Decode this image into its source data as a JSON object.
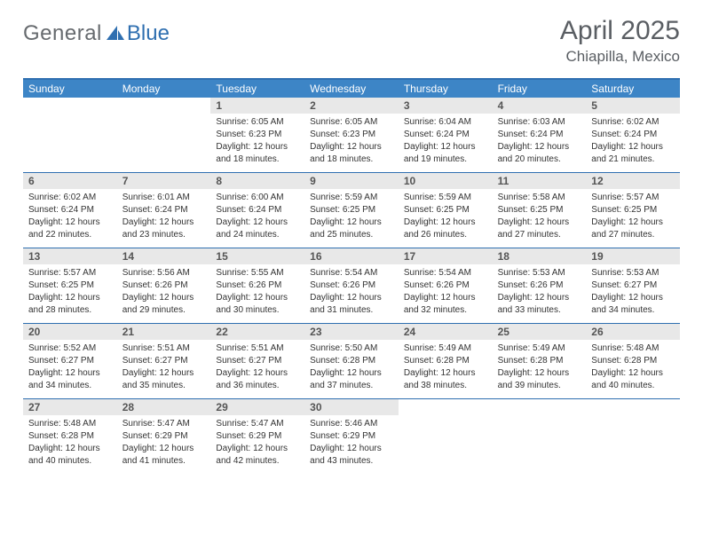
{
  "logo": {
    "word1": "General",
    "word2": "Blue"
  },
  "header": {
    "month_year": "April 2025",
    "location": "Chiapilla, Mexico"
  },
  "colors": {
    "header_bar": "#3d85c6",
    "rule": "#2f6fb0",
    "daynum_bg": "#e8e8e8",
    "logo_gray": "#666a6e",
    "logo_blue": "#2f6fb0",
    "title_gray": "#5a5e63"
  },
  "weekdays": [
    "Sunday",
    "Monday",
    "Tuesday",
    "Wednesday",
    "Thursday",
    "Friday",
    "Saturday"
  ],
  "weeks": [
    [
      {
        "empty": true
      },
      {
        "empty": true
      },
      {
        "num": "1",
        "sunrise": "Sunrise: 6:05 AM",
        "sunset": "Sunset: 6:23 PM",
        "day1": "Daylight: 12 hours",
        "day2": "and 18 minutes."
      },
      {
        "num": "2",
        "sunrise": "Sunrise: 6:05 AM",
        "sunset": "Sunset: 6:23 PM",
        "day1": "Daylight: 12 hours",
        "day2": "and 18 minutes."
      },
      {
        "num": "3",
        "sunrise": "Sunrise: 6:04 AM",
        "sunset": "Sunset: 6:24 PM",
        "day1": "Daylight: 12 hours",
        "day2": "and 19 minutes."
      },
      {
        "num": "4",
        "sunrise": "Sunrise: 6:03 AM",
        "sunset": "Sunset: 6:24 PM",
        "day1": "Daylight: 12 hours",
        "day2": "and 20 minutes."
      },
      {
        "num": "5",
        "sunrise": "Sunrise: 6:02 AM",
        "sunset": "Sunset: 6:24 PM",
        "day1": "Daylight: 12 hours",
        "day2": "and 21 minutes."
      }
    ],
    [
      {
        "num": "6",
        "sunrise": "Sunrise: 6:02 AM",
        "sunset": "Sunset: 6:24 PM",
        "day1": "Daylight: 12 hours",
        "day2": "and 22 minutes."
      },
      {
        "num": "7",
        "sunrise": "Sunrise: 6:01 AM",
        "sunset": "Sunset: 6:24 PM",
        "day1": "Daylight: 12 hours",
        "day2": "and 23 minutes."
      },
      {
        "num": "8",
        "sunrise": "Sunrise: 6:00 AM",
        "sunset": "Sunset: 6:24 PM",
        "day1": "Daylight: 12 hours",
        "day2": "and 24 minutes."
      },
      {
        "num": "9",
        "sunrise": "Sunrise: 5:59 AM",
        "sunset": "Sunset: 6:25 PM",
        "day1": "Daylight: 12 hours",
        "day2": "and 25 minutes."
      },
      {
        "num": "10",
        "sunrise": "Sunrise: 5:59 AM",
        "sunset": "Sunset: 6:25 PM",
        "day1": "Daylight: 12 hours",
        "day2": "and 26 minutes."
      },
      {
        "num": "11",
        "sunrise": "Sunrise: 5:58 AM",
        "sunset": "Sunset: 6:25 PM",
        "day1": "Daylight: 12 hours",
        "day2": "and 27 minutes."
      },
      {
        "num": "12",
        "sunrise": "Sunrise: 5:57 AM",
        "sunset": "Sunset: 6:25 PM",
        "day1": "Daylight: 12 hours",
        "day2": "and 27 minutes."
      }
    ],
    [
      {
        "num": "13",
        "sunrise": "Sunrise: 5:57 AM",
        "sunset": "Sunset: 6:25 PM",
        "day1": "Daylight: 12 hours",
        "day2": "and 28 minutes."
      },
      {
        "num": "14",
        "sunrise": "Sunrise: 5:56 AM",
        "sunset": "Sunset: 6:26 PM",
        "day1": "Daylight: 12 hours",
        "day2": "and 29 minutes."
      },
      {
        "num": "15",
        "sunrise": "Sunrise: 5:55 AM",
        "sunset": "Sunset: 6:26 PM",
        "day1": "Daylight: 12 hours",
        "day2": "and 30 minutes."
      },
      {
        "num": "16",
        "sunrise": "Sunrise: 5:54 AM",
        "sunset": "Sunset: 6:26 PM",
        "day1": "Daylight: 12 hours",
        "day2": "and 31 minutes."
      },
      {
        "num": "17",
        "sunrise": "Sunrise: 5:54 AM",
        "sunset": "Sunset: 6:26 PM",
        "day1": "Daylight: 12 hours",
        "day2": "and 32 minutes."
      },
      {
        "num": "18",
        "sunrise": "Sunrise: 5:53 AM",
        "sunset": "Sunset: 6:26 PM",
        "day1": "Daylight: 12 hours",
        "day2": "and 33 minutes."
      },
      {
        "num": "19",
        "sunrise": "Sunrise: 5:53 AM",
        "sunset": "Sunset: 6:27 PM",
        "day1": "Daylight: 12 hours",
        "day2": "and 34 minutes."
      }
    ],
    [
      {
        "num": "20",
        "sunrise": "Sunrise: 5:52 AM",
        "sunset": "Sunset: 6:27 PM",
        "day1": "Daylight: 12 hours",
        "day2": "and 34 minutes."
      },
      {
        "num": "21",
        "sunrise": "Sunrise: 5:51 AM",
        "sunset": "Sunset: 6:27 PM",
        "day1": "Daylight: 12 hours",
        "day2": "and 35 minutes."
      },
      {
        "num": "22",
        "sunrise": "Sunrise: 5:51 AM",
        "sunset": "Sunset: 6:27 PM",
        "day1": "Daylight: 12 hours",
        "day2": "and 36 minutes."
      },
      {
        "num": "23",
        "sunrise": "Sunrise: 5:50 AM",
        "sunset": "Sunset: 6:28 PM",
        "day1": "Daylight: 12 hours",
        "day2": "and 37 minutes."
      },
      {
        "num": "24",
        "sunrise": "Sunrise: 5:49 AM",
        "sunset": "Sunset: 6:28 PM",
        "day1": "Daylight: 12 hours",
        "day2": "and 38 minutes."
      },
      {
        "num": "25",
        "sunrise": "Sunrise: 5:49 AM",
        "sunset": "Sunset: 6:28 PM",
        "day1": "Daylight: 12 hours",
        "day2": "and 39 minutes."
      },
      {
        "num": "26",
        "sunrise": "Sunrise: 5:48 AM",
        "sunset": "Sunset: 6:28 PM",
        "day1": "Daylight: 12 hours",
        "day2": "and 40 minutes."
      }
    ],
    [
      {
        "num": "27",
        "sunrise": "Sunrise: 5:48 AM",
        "sunset": "Sunset: 6:28 PM",
        "day1": "Daylight: 12 hours",
        "day2": "and 40 minutes."
      },
      {
        "num": "28",
        "sunrise": "Sunrise: 5:47 AM",
        "sunset": "Sunset: 6:29 PM",
        "day1": "Daylight: 12 hours",
        "day2": "and 41 minutes."
      },
      {
        "num": "29",
        "sunrise": "Sunrise: 5:47 AM",
        "sunset": "Sunset: 6:29 PM",
        "day1": "Daylight: 12 hours",
        "day2": "and 42 minutes."
      },
      {
        "num": "30",
        "sunrise": "Sunrise: 5:46 AM",
        "sunset": "Sunset: 6:29 PM",
        "day1": "Daylight: 12 hours",
        "day2": "and 43 minutes."
      },
      {
        "empty": true
      },
      {
        "empty": true
      },
      {
        "empty": true
      }
    ]
  ]
}
